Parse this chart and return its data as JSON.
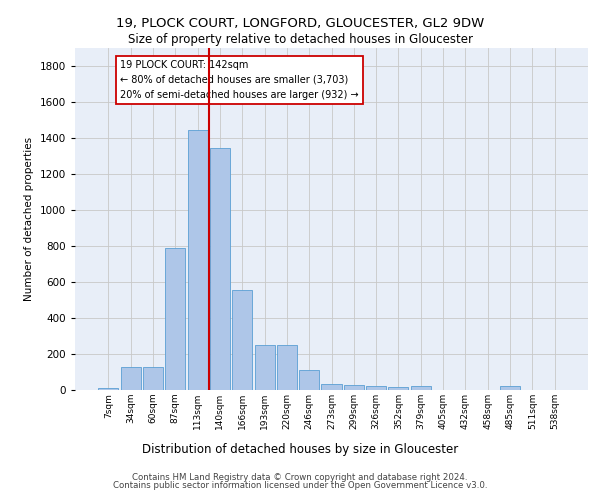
{
  "title_line1": "19, PLOCK COURT, LONGFORD, GLOUCESTER, GL2 9DW",
  "title_line2": "Size of property relative to detached houses in Gloucester",
  "xlabel": "Distribution of detached houses by size in Gloucester",
  "ylabel": "Number of detached properties",
  "bar_values": [
    10,
    125,
    125,
    790,
    1440,
    1340,
    555,
    250,
    250,
    110,
    35,
    30,
    20,
    15,
    20,
    0,
    0,
    0,
    20,
    0,
    0
  ],
  "bin_labels": [
    "7sqm",
    "34sqm",
    "60sqm",
    "87sqm",
    "113sqm",
    "140sqm",
    "166sqm",
    "193sqm",
    "220sqm",
    "246sqm",
    "273sqm",
    "299sqm",
    "326sqm",
    "352sqm",
    "379sqm",
    "405sqm",
    "432sqm",
    "458sqm",
    "485sqm",
    "511sqm",
    "538sqm"
  ],
  "bar_color": "#aec6e8",
  "bar_edge_color": "#5a9fd4",
  "vline_x": 4.5,
  "vline_color": "#cc0000",
  "annotation_text": "19 PLOCK COURT: 142sqm\n← 80% of detached houses are smaller (3,703)\n20% of semi-detached houses are larger (932) →",
  "annotation_box_color": "#ffffff",
  "annotation_box_edge_color": "#cc0000",
  "ylim": [
    0,
    1900
  ],
  "yticks": [
    0,
    200,
    400,
    600,
    800,
    1000,
    1200,
    1400,
    1600,
    1800
  ],
  "bg_color": "#e8eef8",
  "footer_line1": "Contains HM Land Registry data © Crown copyright and database right 2024.",
  "footer_line2": "Contains public sector information licensed under the Open Government Licence v3.0."
}
